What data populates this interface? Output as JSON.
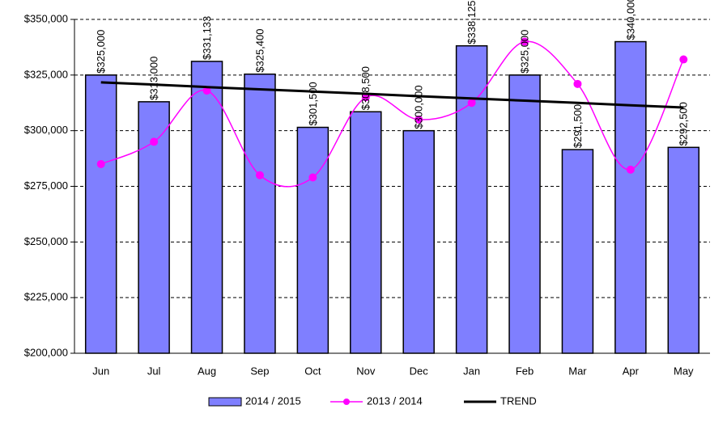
{
  "chart_data": {
    "type": "bar",
    "categories": [
      "Jun",
      "Jul",
      "Aug",
      "Sep",
      "Oct",
      "Nov",
      "Dec",
      "Jan",
      "Feb",
      "Mar",
      "Apr",
      "May"
    ],
    "series": [
      {
        "name": "2014 / 2015",
        "type": "bar",
        "color": "#7f7fff",
        "values": [
          325000,
          313000,
          331133,
          325400,
          301500,
          308500,
          300000,
          338125,
          325000,
          291500,
          340000,
          292500
        ],
        "value_labels": [
          "$325,000",
          "$313,000",
          "$331,133",
          "$325,400",
          "$301,500",
          "$308,500",
          "$300,000",
          "$338,125",
          "$325,000",
          "$291,500",
          "$340,000",
          "$292,500"
        ]
      },
      {
        "name": "2013 / 2014",
        "type": "line",
        "color": "#ff00ff",
        "values": [
          285000,
          295000,
          318000,
          280000,
          279000,
          315000,
          305000,
          312500,
          340000,
          321000,
          282500,
          332000
        ]
      },
      {
        "name": "TREND",
        "type": "line",
        "color": "#000000",
        "values": [
          321700,
          320700,
          319600,
          318600,
          317600,
          316600,
          315500,
          314500,
          313500,
          312500,
          311400,
          310400
        ]
      }
    ],
    "ylim": [
      200000,
      350000
    ],
    "yticks": [
      {
        "value": 200000,
        "label": "$200,000"
      },
      {
        "value": 225000,
        "label": "$225,000"
      },
      {
        "value": 250000,
        "label": "$250,000"
      },
      {
        "value": 275000,
        "label": "$275,000"
      },
      {
        "value": 300000,
        "label": "$300,000"
      },
      {
        "value": 325000,
        "label": "$325,000"
      },
      {
        "value": 350000,
        "label": "$350,000"
      }
    ],
    "grid": true,
    "legend": "bottom"
  }
}
